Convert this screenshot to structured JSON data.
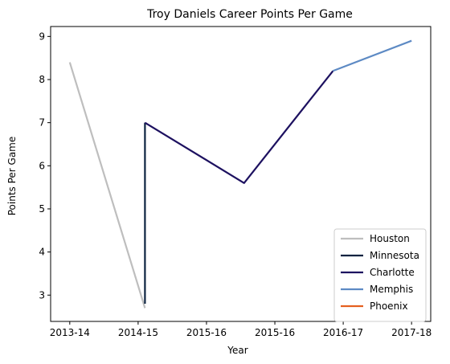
{
  "chart_data": {
    "type": "line",
    "title": "Troy Daniels Career Points Per Game",
    "xlabel": "Year",
    "ylabel": "Points Per Game",
    "x_ticks": [
      "2013-14",
      "2014-15",
      "2015-16",
      "2015-16",
      "2016-17",
      "2017-18"
    ],
    "xlim": [
      -0.28,
      5.28
    ],
    "ylim": [
      2.39,
      9.23
    ],
    "y_ticks": [
      3,
      4,
      5,
      6,
      7,
      8,
      9
    ],
    "grid": false,
    "legend_position": "bottom-right",
    "series": [
      {
        "name": "Houston",
        "color": "#bebebe",
        "x": [
          0,
          1.1
        ],
        "y": [
          8.4,
          2.7
        ]
      },
      {
        "name": "Minnesota",
        "color": "#0c2340",
        "x": [
          1.1,
          1.1
        ],
        "y": [
          2.8,
          7.0
        ]
      },
      {
        "name": "Charlotte",
        "color": "#1d1160",
        "x": [
          1.1,
          2.55,
          3.85
        ],
        "y": [
          7.0,
          5.6,
          8.2
        ]
      },
      {
        "name": "Memphis",
        "color": "#5d8ac4",
        "x": [
          3.85,
          5.0
        ],
        "y": [
          8.2,
          8.9
        ]
      },
      {
        "name": "Phoenix",
        "color": "#e56020",
        "x": [],
        "y": []
      }
    ]
  }
}
